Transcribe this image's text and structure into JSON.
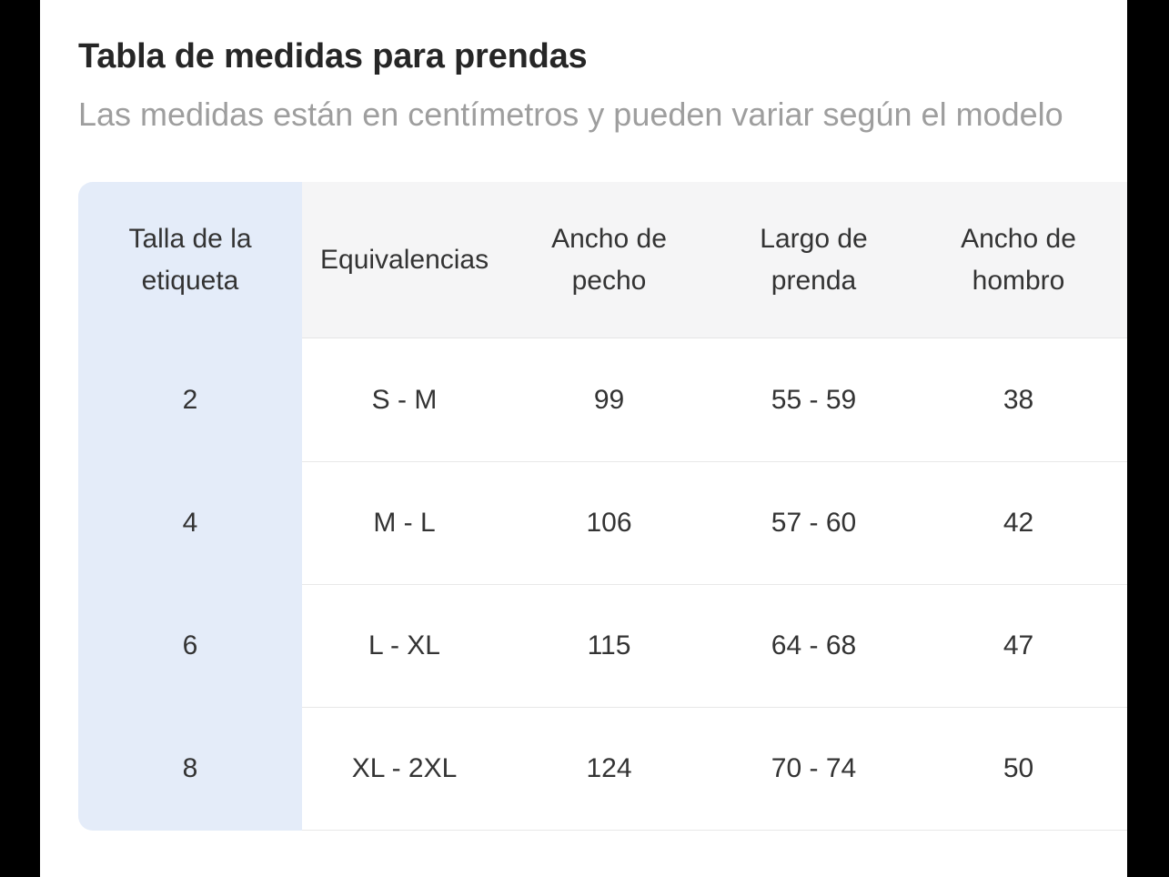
{
  "header": {
    "title": "Tabla de medidas para prendas",
    "subtitle": "Las medidas están en centímetros y pueden variar según el modelo"
  },
  "size_chart": {
    "columns": [
      "Talla de la etiqueta",
      "Equivalencias",
      "Ancho de pecho",
      "Largo de prenda",
      "Ancho de hombro"
    ],
    "rows": [
      [
        "2",
        "S - M",
        "99",
        "55 - 59",
        "38"
      ],
      [
        "4",
        "M - L",
        "106",
        "57 - 60",
        "42"
      ],
      [
        "6",
        "L - XL",
        "115",
        "64 - 68",
        "47"
      ],
      [
        "8",
        "XL - 2XL",
        "124",
        "70 - 74",
        "50"
      ]
    ]
  },
  "colors": {
    "backdrop": "#000000",
    "panel_bg": "#ffffff",
    "pinned_column_bg": "#e4ecf9",
    "header_row_bg": "#f5f5f6",
    "divider": "#e8e8e8",
    "title_text": "#262626",
    "subtitle_text": "#9e9e9e",
    "cell_text": "#333333"
  }
}
